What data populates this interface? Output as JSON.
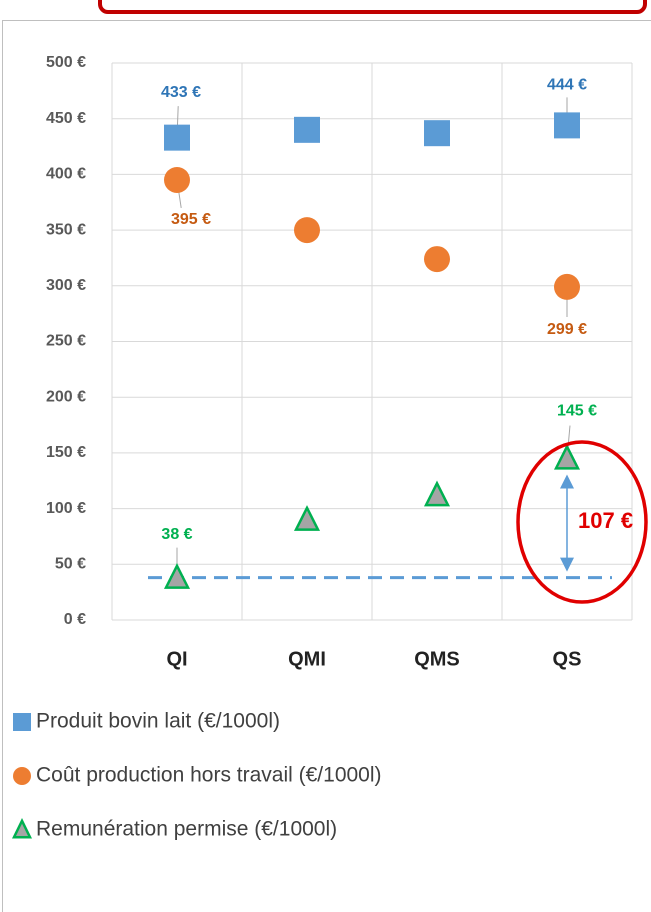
{
  "chart_data": {
    "type": "scatter",
    "categories": [
      "QI",
      "QMI",
      "QMS",
      "QS"
    ],
    "series": [
      {
        "name": "Produit bovin lait (€/1000l)",
        "color": "#5b9bd5",
        "marker": "square",
        "label_color": "#2e75b6",
        "values": [
          433,
          440,
          437,
          444
        ],
        "value_labels": [
          "433 €",
          null,
          null,
          "444 €"
        ]
      },
      {
        "name": "Coût production hors travail (€/1000l)",
        "color": "#ed7d31",
        "marker": "circle",
        "label_color": "#c55a11",
        "values": [
          395,
          350,
          324,
          299
        ],
        "value_labels": [
          "395 €",
          null,
          null,
          "299 €"
        ]
      },
      {
        "name": "Remunération permise (€/1000l)",
        "color": "#00b050",
        "marker_fill": "#a5a5a5",
        "marker": "triangle",
        "label_color": "#00b050",
        "values": [
          38,
          90,
          112,
          145
        ],
        "value_labels": [
          "38 €",
          null,
          null,
          "145 €"
        ]
      }
    ],
    "ylim": [
      0,
      500
    ],
    "yticks": [
      {
        "value": 0,
        "label": "0 €"
      },
      {
        "value": 50,
        "label": "50 €"
      },
      {
        "value": 100,
        "label": "100 €"
      },
      {
        "value": 150,
        "label": "150 €"
      },
      {
        "value": 200,
        "label": "200 €"
      },
      {
        "value": 250,
        "label": "250 €"
      },
      {
        "value": 300,
        "label": "300 €"
      },
      {
        "value": 350,
        "label": "350 €"
      },
      {
        "value": 400,
        "label": "400 €"
      },
      {
        "value": 450,
        "label": "450 €"
      },
      {
        "value": 500,
        "label": "500 €"
      }
    ],
    "grid": true,
    "reference_value": 38,
    "annotation": "107 €"
  }
}
